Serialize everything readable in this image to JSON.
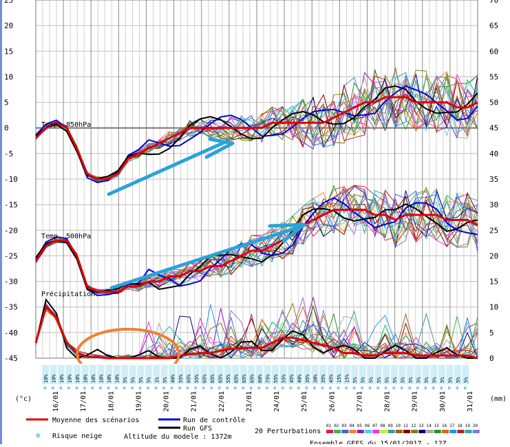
{
  "chart_data": {
    "type": "line",
    "left_axis": {
      "min": -45,
      "max": 25,
      "ticks": [
        -45,
        -40,
        -35,
        -30,
        -25,
        -20,
        -15,
        -10,
        -5,
        0,
        5,
        10,
        15,
        20,
        25
      ],
      "unit": "(°c)"
    },
    "right_axis": {
      "min": 0,
      "max": 70,
      "ticks": [
        0,
        5,
        10,
        15,
        20,
        25,
        30,
        35,
        40,
        45,
        50,
        55,
        60,
        65,
        70
      ],
      "unit": "(mm)"
    },
    "x_ticks": [
      "16/01",
      "17/01",
      "18/01",
      "19/01",
      "20/01",
      "21/01",
      "22/01",
      "23/01",
      "24/01",
      "25/01",
      "26/01",
      "27/01",
      "28/01",
      "29/01",
      "30/01",
      "31/01"
    ],
    "panel_labels": {
      "t850": "Temp. 850hPa",
      "t500": "Temp. 500hPa",
      "precip": "Précipitation"
    },
    "mean_t850": [
      -2,
      0,
      1,
      0,
      -4,
      -9,
      -10,
      -10,
      -9,
      -6,
      -5,
      -4,
      -3,
      -2,
      -1,
      0,
      0,
      0,
      0,
      0,
      0,
      0,
      0,
      1,
      1,
      1,
      1,
      1,
      1,
      2,
      3,
      4,
      5,
      5,
      6,
      6,
      6,
      5,
      5,
      5,
      5,
      4,
      4,
      5
    ],
    "mean_t500": [
      -26,
      -23,
      -22,
      -22,
      -25,
      -31,
      -32,
      -32,
      -32,
      -31,
      -31,
      -30,
      -30,
      -29,
      -29,
      -28,
      -28,
      -27,
      -27,
      -26,
      -25,
      -24,
      -24,
      -23,
      -22,
      -21,
      -19,
      -18,
      -17,
      -16,
      -16,
      -16,
      -16,
      -17,
      -17,
      -18,
      -17,
      -17,
      -17,
      -17,
      -18,
      -18,
      -18,
      -19
    ],
    "mean_precip": [
      3,
      10,
      8,
      3,
      1,
      0.3,
      0.2,
      0,
      0,
      0,
      0,
      0,
      0,
      0,
      0.5,
      0.8,
      1,
      1,
      1.5,
      1.8,
      2,
      2,
      2,
      3,
      4,
      4,
      3.5,
      3,
      2.5,
      2,
      1,
      1,
      0.5,
      0.5,
      1,
      1,
      1,
      0.5,
      0.5,
      0.5,
      0.5,
      0.5,
      0.5,
      0
    ],
    "snow_risk_row": [
      "10%",
      "10%",
      "10%",
      "10%",
      "10%",
      "10%",
      "10%",
      "10%",
      "10%",
      "10%",
      "5%",
      "5%",
      "5%",
      "5%",
      "1%",
      "5%",
      "40%",
      "55%",
      "65%",
      "55%",
      "65%",
      "65%",
      "65%",
      "55%",
      "65%",
      "65%",
      "65%",
      "60%",
      "75%",
      "55%",
      "55%",
      "45%",
      "40%",
      "35%",
      "30%",
      "35%",
      "45%",
      "15%",
      "15%",
      "5%",
      "5%",
      "5%",
      "5%",
      "5%",
      "5%",
      "5%",
      "5%",
      "5%",
      "5%",
      "5%",
      "5%",
      "5%",
      "5%",
      "5%"
    ]
  },
  "legend": {
    "mean": "Moyenne des scénarios",
    "control": "Run de contrôle",
    "gfs": "Run GFS",
    "snow": "Risque neige",
    "perturbations": "20 Perturbations",
    "altitude": "Altitude du modele : 1372m",
    "footer": "Ensemble GEFS du 15/01/2017 - 12Z",
    "pert_numbers": [
      "01",
      "02",
      "03",
      "04",
      "05",
      "06",
      "07",
      "08",
      "09",
      "10",
      "11",
      "12",
      "13",
      "14",
      "15",
      "16",
      "17",
      "18",
      "19",
      "20"
    ],
    "colors": {
      "mean": "#e00000",
      "control": "#0000e0",
      "gfs": "#000000",
      "annotation_arrow": "#2aa3d8",
      "annotation_ellipse": "#f08030"
    }
  }
}
